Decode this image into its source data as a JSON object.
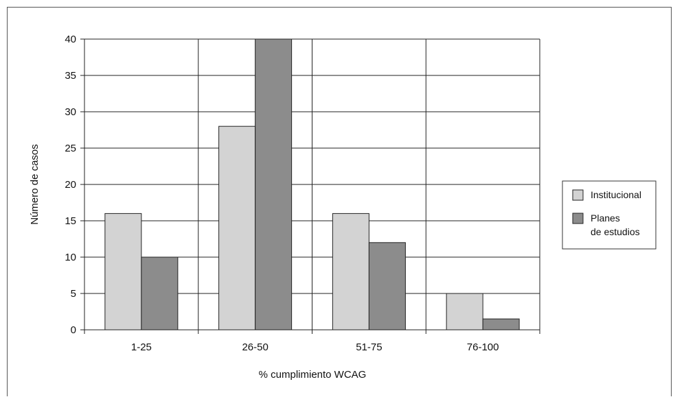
{
  "chart_data": {
    "type": "bar",
    "xlabel": "% cumplimiento WCAG",
    "ylabel": "Número de casos",
    "categories": [
      "1-25",
      "26-50",
      "51-75",
      "76-100"
    ],
    "ylim": [
      0,
      40
    ],
    "yticks": [
      0,
      5,
      10,
      15,
      20,
      25,
      30,
      35,
      40
    ],
    "grid": true,
    "legend_position": "right",
    "series": [
      {
        "name": "Institucional",
        "values": [
          16,
          28,
          16,
          5
        ],
        "color": "#d3d3d3"
      },
      {
        "name": "Planes de estudios",
        "name_lines": [
          "Planes",
          "de estudios"
        ],
        "values": [
          10,
          40,
          12,
          1.5
        ],
        "color": "#8c8c8c"
      }
    ]
  }
}
